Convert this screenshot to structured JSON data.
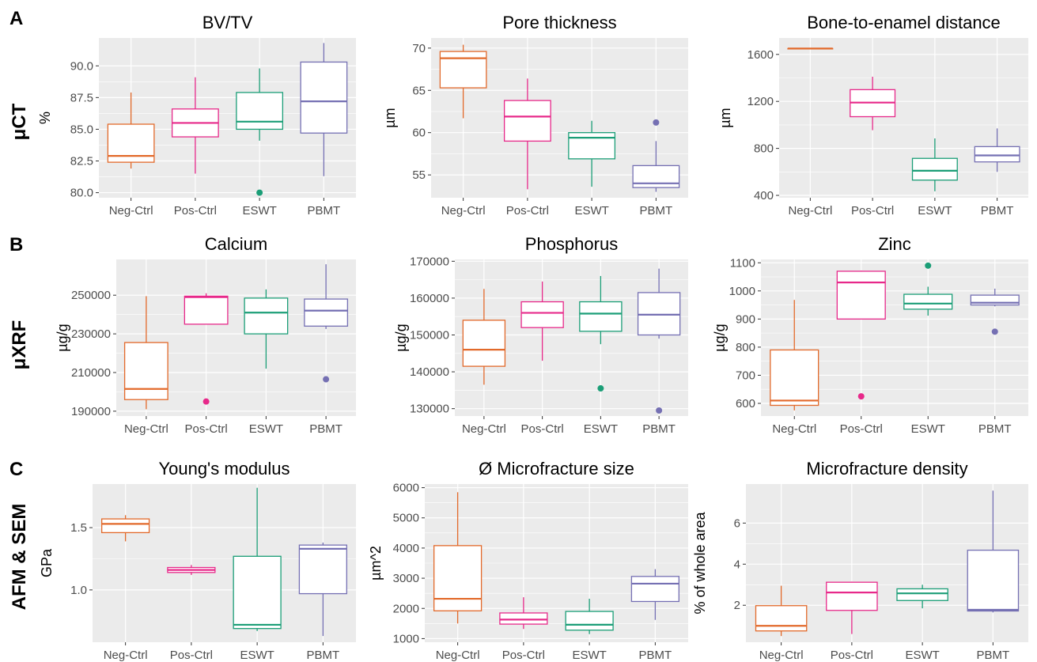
{
  "rows": [
    {
      "letter": "A",
      "label": "μCT"
    },
    {
      "letter": "B",
      "label": "μXRF"
    },
    {
      "letter": "C",
      "label": "AFM & SEM"
    }
  ],
  "colors": {
    "Neg-Ctrl": "#E2692A",
    "Pos-Ctrl": "#E7298A",
    "ESWT": "#1B9E77",
    "PBMT": "#7570B3",
    "panel_bg": "#EBEBEB",
    "grid": "#FFFFFF"
  },
  "chart_data": [
    {
      "type": "box",
      "title": "BV/TV",
      "xlabel": "",
      "ylabel": "%",
      "categories": [
        "Neg-Ctrl",
        "Pos-Ctrl",
        "ESWT",
        "PBMT"
      ],
      "ylim": [
        79.6,
        92.2
      ],
      "yticks": [
        80.0,
        82.5,
        85.0,
        87.5,
        90.0
      ],
      "ytick_labels": [
        "80.0",
        "82.5",
        "85.0",
        "87.5",
        "90.0"
      ],
      "boxes": [
        {
          "group": "Neg-Ctrl",
          "min": 81.9,
          "q1": 82.4,
          "median": 82.9,
          "q3": 85.4,
          "max": 87.9,
          "outliers": []
        },
        {
          "group": "Pos-Ctrl",
          "min": 81.5,
          "q1": 84.4,
          "median": 85.5,
          "q3": 86.6,
          "max": 89.1,
          "outliers": []
        },
        {
          "group": "ESWT",
          "min": 84.1,
          "q1": 85.0,
          "median": 85.6,
          "q3": 87.9,
          "max": 89.8,
          "outliers": [
            80.0
          ]
        },
        {
          "group": "PBMT",
          "min": 81.3,
          "q1": 84.7,
          "median": 87.2,
          "q3": 90.3,
          "max": 91.8,
          "outliers": []
        }
      ]
    },
    {
      "type": "box",
      "title": "Pore thickness",
      "xlabel": "",
      "ylabel": "µm",
      "categories": [
        "Neg-Ctrl",
        "Pos-Ctrl",
        "ESWT",
        "PBMT"
      ],
      "ylim": [
        52.3,
        71.2
      ],
      "yticks": [
        55,
        60,
        65,
        70
      ],
      "ytick_labels": [
        "55",
        "60",
        "65",
        "70"
      ],
      "boxes": [
        {
          "group": "Neg-Ctrl",
          "min": 61.7,
          "q1": 65.3,
          "median": 68.8,
          "q3": 69.6,
          "max": 70.4,
          "outliers": []
        },
        {
          "group": "Pos-Ctrl",
          "min": 53.3,
          "q1": 59.0,
          "median": 61.9,
          "q3": 63.8,
          "max": 66.4,
          "outliers": []
        },
        {
          "group": "ESWT",
          "min": 53.6,
          "q1": 56.9,
          "median": 59.4,
          "q3": 60.0,
          "max": 61.4,
          "outliers": []
        },
        {
          "group": "PBMT",
          "min": 53.0,
          "q1": 53.5,
          "median": 54.0,
          "q3": 56.1,
          "max": 59.0,
          "outliers": [
            61.2
          ]
        }
      ]
    },
    {
      "type": "box",
      "title": "Bone-to-enamel distance",
      "xlabel": "",
      "ylabel": "µm",
      "categories": [
        "Neg-Ctrl",
        "Pos-Ctrl",
        "ESWT",
        "PBMT"
      ],
      "ylim": [
        380,
        1740
      ],
      "yticks": [
        400,
        800,
        1200,
        1600
      ],
      "ytick_labels": [
        "400",
        "800",
        "1200",
        "1600"
      ],
      "boxes": [
        {
          "group": "Neg-Ctrl",
          "min": 1650,
          "q1": 1650,
          "median": 1650,
          "q3": 1650,
          "max": 1650,
          "outliers": []
        },
        {
          "group": "Pos-Ctrl",
          "min": 955,
          "q1": 1070,
          "median": 1190,
          "q3": 1300,
          "max": 1410,
          "outliers": []
        },
        {
          "group": "ESWT",
          "min": 435,
          "q1": 530,
          "median": 610,
          "q3": 715,
          "max": 885,
          "outliers": []
        },
        {
          "group": "PBMT",
          "min": 600,
          "q1": 685,
          "median": 740,
          "q3": 815,
          "max": 970,
          "outliers": []
        }
      ]
    },
    {
      "type": "box",
      "title": "Calcium",
      "xlabel": "",
      "ylabel": "µg/g",
      "categories": [
        "Neg-Ctrl",
        "Pos-Ctrl",
        "ESWT",
        "PBMT"
      ],
      "ylim": [
        187500,
        268500
      ],
      "yticks": [
        190000,
        210000,
        230000,
        250000
      ],
      "ytick_labels": [
        "190000",
        "210000",
        "230000",
        "250000"
      ],
      "boxes": [
        {
          "group": "Neg-Ctrl",
          "min": 191000,
          "q1": 196000,
          "median": 201500,
          "q3": 225500,
          "max": 249500,
          "outliers": []
        },
        {
          "group": "Pos-Ctrl",
          "min": 235000,
          "q1": 235000,
          "median": 249000,
          "q3": 249500,
          "max": 251000,
          "outliers": [
            195000
          ]
        },
        {
          "group": "ESWT",
          "min": 212000,
          "q1": 230000,
          "median": 241000,
          "q3": 248500,
          "max": 253000,
          "outliers": []
        },
        {
          "group": "PBMT",
          "min": 232500,
          "q1": 234000,
          "median": 242000,
          "q3": 248000,
          "max": 266000,
          "outliers": [
            206500
          ]
        }
      ]
    },
    {
      "type": "box",
      "title": "Phosphorus",
      "xlabel": "",
      "ylabel": "µg/g",
      "categories": [
        "Neg-Ctrl",
        "Pos-Ctrl",
        "ESWT",
        "PBMT"
      ],
      "ylim": [
        128000,
        170500
      ],
      "yticks": [
        130000,
        140000,
        150000,
        160000,
        170000
      ],
      "ytick_labels": [
        "130000",
        "140000",
        "150000",
        "160000",
        "170000"
      ],
      "boxes": [
        {
          "group": "Neg-Ctrl",
          "min": 136500,
          "q1": 141500,
          "median": 146000,
          "q3": 154000,
          "max": 162500,
          "outliers": []
        },
        {
          "group": "Pos-Ctrl",
          "min": 143000,
          "q1": 152000,
          "median": 156000,
          "q3": 159000,
          "max": 164500,
          "outliers": []
        },
        {
          "group": "ESWT",
          "min": 147500,
          "q1": 151000,
          "median": 155800,
          "q3": 159000,
          "max": 166000,
          "outliers": [
            135500
          ]
        },
        {
          "group": "PBMT",
          "min": 149000,
          "q1": 150000,
          "median": 155500,
          "q3": 161500,
          "max": 168000,
          "outliers": [
            129500
          ]
        }
      ]
    },
    {
      "type": "box",
      "title": "Zinc",
      "xlabel": "",
      "ylabel": "µg/g",
      "categories": [
        "Neg-Ctrl",
        "Pos-Ctrl",
        "ESWT",
        "PBMT"
      ],
      "ylim": [
        555,
        1112
      ],
      "yticks": [
        600,
        700,
        800,
        900,
        1000,
        1100
      ],
      "ytick_labels": [
        "600",
        "700",
        "800",
        "900",
        "1000",
        "1100"
      ],
      "boxes": [
        {
          "group": "Neg-Ctrl",
          "min": 575,
          "q1": 593,
          "median": 610,
          "q3": 790,
          "max": 968,
          "outliers": []
        },
        {
          "group": "Pos-Ctrl",
          "min": 900,
          "q1": 900,
          "median": 1030,
          "q3": 1070,
          "max": 1072,
          "outliers": [
            625
          ]
        },
        {
          "group": "ESWT",
          "min": 912,
          "q1": 935,
          "median": 955,
          "q3": 988,
          "max": 1015,
          "outliers": [
            1090
          ]
        },
        {
          "group": "PBMT",
          "min": 945,
          "q1": 950,
          "median": 958,
          "q3": 985,
          "max": 1008,
          "outliers": [
            855
          ]
        }
      ]
    },
    {
      "type": "box",
      "title": "Young's modulus",
      "xlabel": "",
      "ylabel": "GPa",
      "categories": [
        "Neg-Ctrl",
        "Pos-Ctrl",
        "ESWT",
        "PBMT"
      ],
      "ylim": [
        0.58,
        1.85
      ],
      "yticks": [
        1.0,
        1.5
      ],
      "ytick_labels": [
        "1.0",
        "1.5"
      ],
      "boxes": [
        {
          "group": "Neg-Ctrl",
          "min": 1.39,
          "q1": 1.46,
          "median": 1.53,
          "q3": 1.57,
          "max": 1.6,
          "outliers": []
        },
        {
          "group": "Pos-Ctrl",
          "min": 1.12,
          "q1": 1.14,
          "median": 1.16,
          "q3": 1.18,
          "max": 1.2,
          "outliers": []
        },
        {
          "group": "ESWT",
          "min": 0.67,
          "q1": 0.69,
          "median": 0.72,
          "q3": 1.27,
          "max": 1.82,
          "outliers": []
        },
        {
          "group": "PBMT",
          "min": 0.63,
          "q1": 0.97,
          "median": 1.33,
          "q3": 1.36,
          "max": 1.38,
          "outliers": []
        }
      ]
    },
    {
      "type": "box",
      "title": "Ø Microfracture size",
      "xlabel": "",
      "ylabel": "µm^2",
      "categories": [
        "Neg-Ctrl",
        "Pos-Ctrl",
        "ESWT",
        "PBMT"
      ],
      "ylim": [
        880,
        6120
      ],
      "yticks": [
        1000,
        2000,
        3000,
        4000,
        5000,
        6000
      ],
      "ytick_labels": [
        "1000",
        "2000",
        "3000",
        "4000",
        "5000",
        "6000"
      ],
      "boxes": [
        {
          "group": "Neg-Ctrl",
          "min": 1500,
          "q1": 1920,
          "median": 2320,
          "q3": 4080,
          "max": 5850,
          "outliers": []
        },
        {
          "group": "Pos-Ctrl",
          "min": 1320,
          "q1": 1480,
          "median": 1630,
          "q3": 1850,
          "max": 2370,
          "outliers": []
        },
        {
          "group": "ESWT",
          "min": 1150,
          "q1": 1280,
          "median": 1460,
          "q3": 1900,
          "max": 2320,
          "outliers": []
        },
        {
          "group": "PBMT",
          "min": 1620,
          "q1": 2230,
          "median": 2820,
          "q3": 3060,
          "max": 3300,
          "outliers": []
        }
      ]
    },
    {
      "type": "box",
      "title": "Microfracture density",
      "xlabel": "",
      "ylabel": "% of whole area",
      "categories": [
        "Neg-Ctrl",
        "Pos-Ctrl",
        "ESWT",
        "PBMT"
      ],
      "ylim": [
        0.2,
        7.9
      ],
      "yticks": [
        2,
        4,
        6
      ],
      "ytick_labels": [
        "2",
        "4",
        "6"
      ],
      "boxes": [
        {
          "group": "Neg-Ctrl",
          "min": 0.5,
          "q1": 0.75,
          "median": 1.0,
          "q3": 1.98,
          "max": 2.95,
          "outliers": []
        },
        {
          "group": "Pos-Ctrl",
          "min": 0.6,
          "q1": 1.75,
          "median": 2.62,
          "q3": 3.12,
          "max": 3.15,
          "outliers": []
        },
        {
          "group": "ESWT",
          "min": 1.85,
          "q1": 2.23,
          "median": 2.58,
          "q3": 2.8,
          "max": 3.0,
          "outliers": []
        },
        {
          "group": "PBMT",
          "min": 1.65,
          "q1": 1.72,
          "median": 1.78,
          "q3": 4.68,
          "max": 7.58,
          "outliers": []
        }
      ]
    }
  ]
}
